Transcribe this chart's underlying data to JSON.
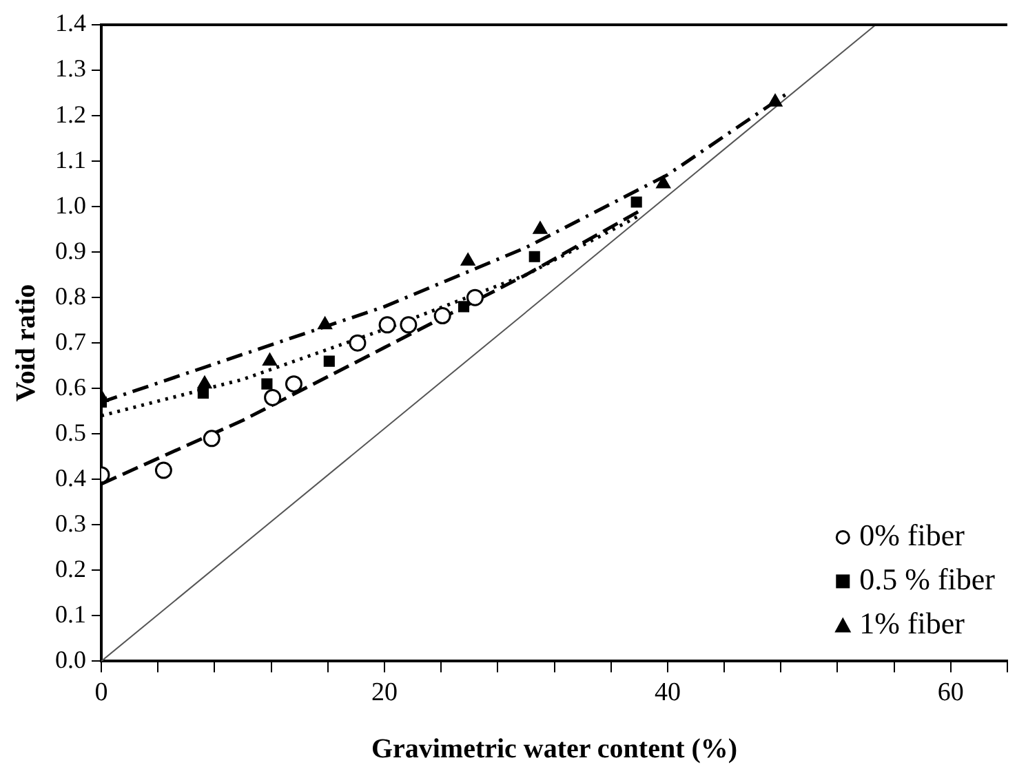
{
  "chart_data": {
    "type": "scatter",
    "xlabel": "Gravimetric water content (%)",
    "ylabel": "Void ratio",
    "xlim": [
      0,
      64
    ],
    "xticks": [
      0,
      {
        "value": 4,
        "label": null
      },
      {
        "value": 8,
        "label": null
      },
      {
        "value": 12,
        "label": null
      },
      {
        "value": 16,
        "label": null
      },
      20,
      {
        "value": 24,
        "label": null
      },
      {
        "value": 28,
        "label": null
      },
      {
        "value": 32,
        "label": null
      },
      {
        "value": 36,
        "label": null
      },
      40,
      {
        "value": 44,
        "label": null
      },
      {
        "value": 48,
        "label": null
      },
      {
        "value": 52,
        "label": null
      },
      {
        "value": 56,
        "label": null
      },
      60,
      {
        "value": 64,
        "label": null
      }
    ],
    "ylim": [
      0,
      1.4
    ],
    "yticks": [
      {
        "value": 0,
        "label": "0.0"
      },
      0.1,
      0.2,
      0.3,
      0.4,
      0.5,
      0.6,
      0.7,
      0.8,
      0.9,
      {
        "value": 1,
        "label": "1.0"
      },
      1.1,
      1.2,
      1.3,
      1.4
    ],
    "grid": false,
    "legend": "bottom right",
    "series": [
      {
        "name": "0% fiber",
        "marker": "circle",
        "color": "#000000",
        "x": [
          0,
          4.4,
          7.8,
          12.1,
          13.6,
          18.1,
          20.2,
          21.7,
          24.1,
          26.4
        ],
        "values": [
          0.41,
          0.42,
          0.49,
          0.58,
          0.61,
          0.7,
          0.74,
          0.74,
          0.76,
          0.8
        ]
      },
      {
        "name": "0.5 % fiber",
        "marker": "square",
        "color": "#000000",
        "x": [
          0,
          7.2,
          11.7,
          16.1,
          25.6,
          30.6,
          37.8
        ],
        "values": [
          0.57,
          0.59,
          0.61,
          0.66,
          0.78,
          0.89,
          1.01
        ]
      },
      {
        "name": "1% fiber",
        "marker": "triangle",
        "color": "#000000",
        "x": [
          0,
          7.3,
          11.9,
          15.8,
          25.9,
          31.0,
          39.7,
          47.6
        ],
        "values": [
          0.58,
          0.61,
          0.66,
          0.74,
          0.88,
          0.95,
          1.05,
          1.23
        ]
      },
      {
        "type": "line",
        "line_style": "dashed",
        "color": "#000000",
        "x": [
          0,
          10,
          20,
          30,
          38
        ],
        "values": [
          0.39,
          0.53,
          0.69,
          0.85,
          0.99
        ]
      },
      {
        "type": "line",
        "line_style": "dotted",
        "color": "#000000",
        "x": [
          0,
          10,
          20,
          30,
          38
        ],
        "values": [
          0.54,
          0.62,
          0.73,
          0.85,
          0.98
        ]
      },
      {
        "type": "line",
        "line_style": "dashdot",
        "color": "#000000",
        "x": [
          0,
          20,
          30,
          40,
          48.5
        ],
        "values": [
          0.57,
          0.78,
          0.91,
          1.07,
          1.25
        ]
      },
      {
        "type": "line",
        "line_style": "solid",
        "color": "#555555",
        "x": [
          0,
          54.7
        ],
        "values": [
          0,
          1.4
        ]
      }
    ]
  }
}
